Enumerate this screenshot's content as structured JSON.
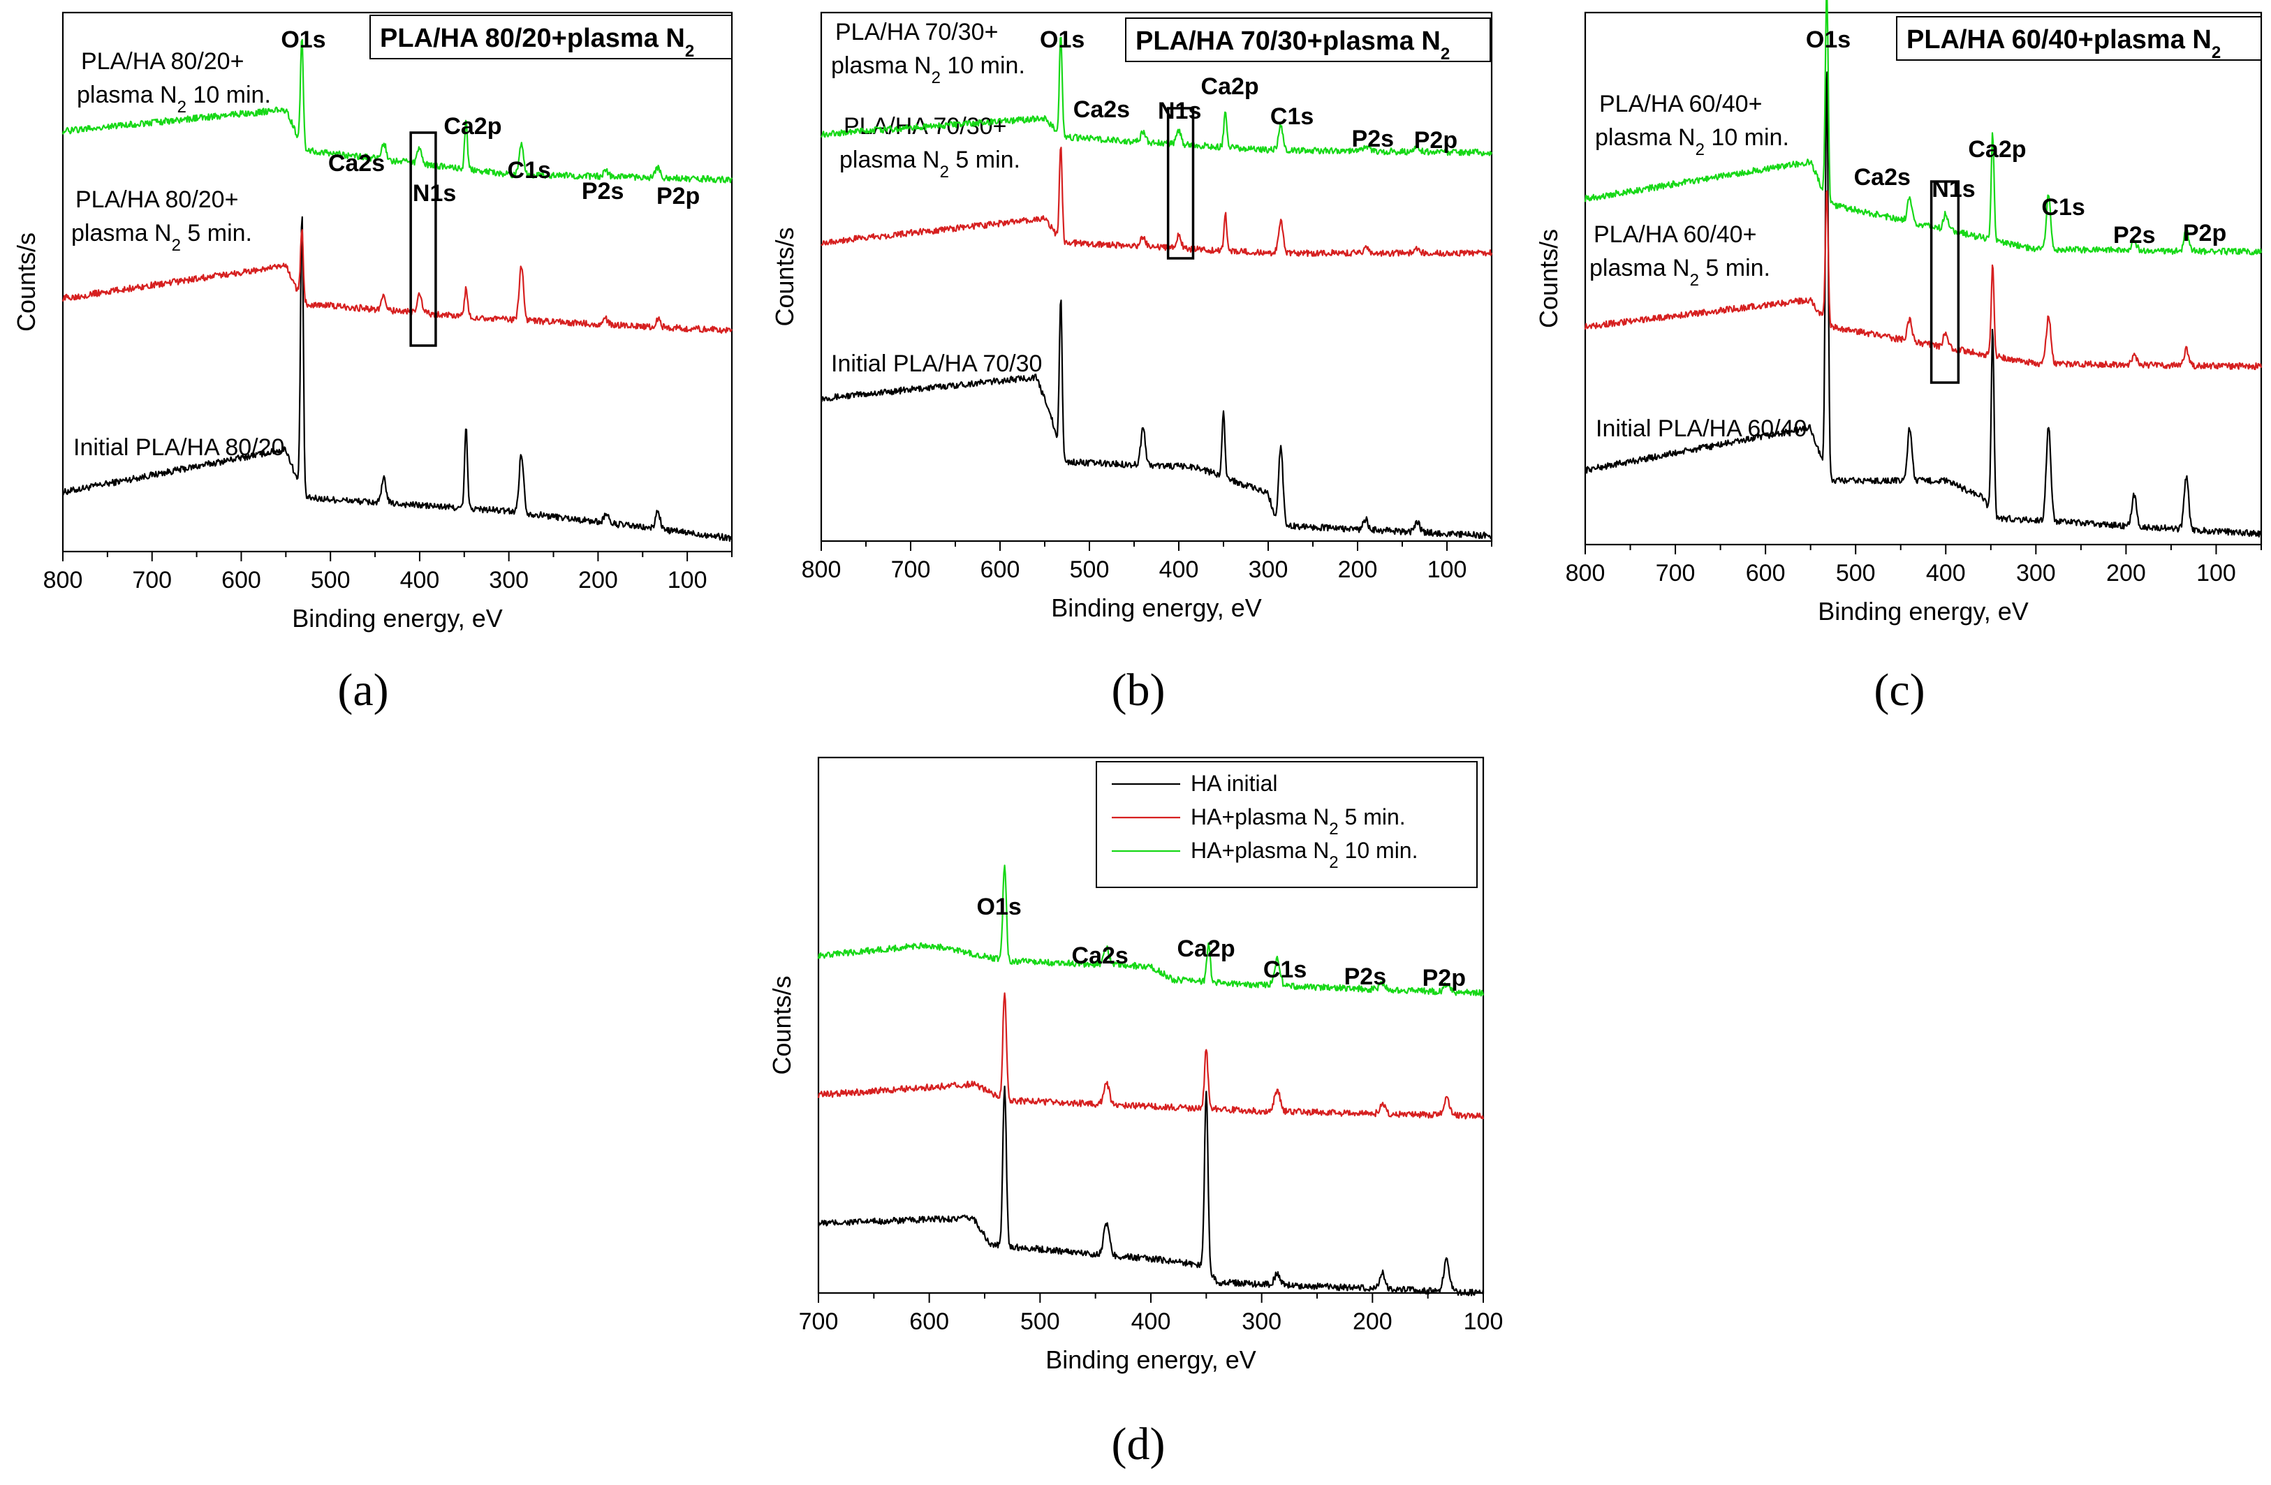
{
  "colors": {
    "initial": "#000000",
    "plasma_5": "#d62020",
    "plasma_10": "#17d817"
  },
  "chart_data": [
    {
      "type": "line",
      "panel_label": "(a)",
      "title": "PLA/HA 80/20+plasma N",
      "title_subscript": "2",
      "xlabel": "Binding energy, eV",
      "ylabel": "Counts/s",
      "xlim": [
        800,
        50
      ],
      "x_ticks": [
        800,
        700,
        600,
        500,
        400,
        300,
        200,
        100
      ],
      "peaks": [
        {
          "label": "O1s",
          "x": 532
        },
        {
          "label": "Ca2s",
          "x": 440
        },
        {
          "label": "N1s",
          "x": 400
        },
        {
          "label": "Ca2p",
          "x": 348
        },
        {
          "label": "C1s",
          "x": 286
        },
        {
          "label": "P2s",
          "x": 191
        },
        {
          "label": "P2p",
          "x": 133
        }
      ],
      "n1s_box": [
        410,
        382
      ],
      "series": [
        {
          "name": "Initial PLA/HA 80/20",
          "label_lines": [
            "Initial PLA/HA 80/20"
          ],
          "color_key": "initial",
          "baseline": [
            [
              800,
              0.11
            ],
            [
              550,
              0.19
            ],
            [
              530,
              0.1
            ],
            [
              300,
              0.075
            ],
            [
              50,
              0.025
            ]
          ],
          "peaks": [
            {
              "x": 532,
              "h": 0.52
            },
            {
              "x": 440,
              "h": 0.045
            },
            {
              "x": 348,
              "h": 0.15
            },
            {
              "x": 286,
              "h": 0.11
            },
            {
              "x": 191,
              "h": 0.018
            },
            {
              "x": 133,
              "h": 0.035
            }
          ]
        },
        {
          "name": "PLA/HA 80/20+ plasma N2 5 min.",
          "label_lines": [
            "PLA/HA 80/20+",
            "plasma N",
            "2",
            " 5 min."
          ],
          "color_key": "plasma_5",
          "baseline": [
            [
              800,
              0.47
            ],
            [
              550,
              0.53
            ],
            [
              530,
              0.46
            ],
            [
              300,
              0.43
            ],
            [
              50,
              0.41
            ]
          ],
          "peaks": [
            {
              "x": 532,
              "h": 0.13
            },
            {
              "x": 440,
              "h": 0.025
            },
            {
              "x": 400,
              "h": 0.035
            },
            {
              "x": 348,
              "h": 0.055
            },
            {
              "x": 286,
              "h": 0.1
            },
            {
              "x": 191,
              "h": 0.01
            },
            {
              "x": 133,
              "h": 0.015
            }
          ]
        },
        {
          "name": "PLA/HA 80/20+ plasma N2 10 min.",
          "label_lines": [
            "PLA/HA 80/20+",
            "plasma N",
            "2",
            " 10 min."
          ],
          "color_key": "plasma_10",
          "baseline": [
            [
              800,
              0.78
            ],
            [
              550,
              0.82
            ],
            [
              530,
              0.745
            ],
            [
              300,
              0.7
            ],
            [
              50,
              0.69
            ]
          ],
          "peaks": [
            {
              "x": 532,
              "h": 0.2
            },
            {
              "x": 440,
              "h": 0.03
            },
            {
              "x": 400,
              "h": 0.03
            },
            {
              "x": 348,
              "h": 0.09
            },
            {
              "x": 286,
              "h": 0.06
            },
            {
              "x": 191,
              "h": 0.012
            },
            {
              "x": 133,
              "h": 0.02
            }
          ]
        }
      ]
    },
    {
      "type": "line",
      "panel_label": "(b)",
      "title": "PLA/HA 70/30+plasma N",
      "title_subscript": "2",
      "xlabel": "Binding energy, eV",
      "ylabel": "Counts/s",
      "xlim": [
        800,
        50
      ],
      "x_ticks": [
        800,
        700,
        600,
        500,
        400,
        300,
        200,
        100
      ],
      "peaks": [
        {
          "label": "O1s",
          "x": 532
        },
        {
          "label": "Ca2s",
          "x": 440
        },
        {
          "label": "N1s",
          "x": 400
        },
        {
          "label": "Ca2p",
          "x": 348
        },
        {
          "label": "C1s",
          "x": 286
        },
        {
          "label": "P2s",
          "x": 191
        },
        {
          "label": "P2p",
          "x": 133
        }
      ],
      "n1s_box": [
        412,
        384
      ],
      "series": [
        {
          "name": "Initial PLA/HA 70/30",
          "label_lines": [
            "Initial PLA/HA 70/30"
          ],
          "color_key": "initial",
          "baseline": [
            [
              800,
              0.27
            ],
            [
              560,
              0.31
            ],
            [
              545,
              0.25
            ],
            [
              530,
              0.15
            ],
            [
              380,
              0.14
            ],
            [
              300,
              0.09
            ],
            [
              290,
              0.03
            ],
            [
              50,
              0.01
            ]
          ],
          "peaks": [
            {
              "x": 532,
              "h": 0.3
            },
            {
              "x": 440,
              "h": 0.07
            },
            {
              "x": 350,
              "h": 0.13
            },
            {
              "x": 286,
              "h": 0.15
            },
            {
              "x": 191,
              "h": 0.02
            },
            {
              "x": 133,
              "h": 0.02
            }
          ]
        },
        {
          "name": "PLA/HA 70/30+ plasma N2 5 min.",
          "label_lines": [
            "PLA/HA 70/30+",
            "plasma N",
            "2",
            " 5 min."
          ],
          "color_key": "plasma_5",
          "baseline": [
            [
              800,
              0.565
            ],
            [
              550,
              0.61
            ],
            [
              530,
              0.565
            ],
            [
              300,
              0.545
            ],
            [
              50,
              0.545
            ]
          ],
          "peaks": [
            {
              "x": 532,
              "h": 0.18
            },
            {
              "x": 440,
              "h": 0.02
            },
            {
              "x": 400,
              "h": 0.025
            },
            {
              "x": 348,
              "h": 0.07
            },
            {
              "x": 286,
              "h": 0.06
            },
            {
              "x": 191,
              "h": 0.01
            },
            {
              "x": 133,
              "h": 0.01
            }
          ]
        },
        {
          "name": "PLA/HA 70/30+ plasma N2 10 min.",
          "label_lines": [
            "PLA/HA 70/30+",
            "plasma N",
            "2",
            " 10 min."
          ],
          "color_key": "plasma_10",
          "baseline": [
            [
              800,
              0.77
            ],
            [
              550,
              0.8
            ],
            [
              530,
              0.765
            ],
            [
              300,
              0.74
            ],
            [
              50,
              0.735
            ]
          ],
          "peaks": [
            {
              "x": 532,
              "h": 0.19
            },
            {
              "x": 440,
              "h": 0.02
            },
            {
              "x": 400,
              "h": 0.025
            },
            {
              "x": 348,
              "h": 0.07
            },
            {
              "x": 286,
              "h": 0.05
            },
            {
              "x": 191,
              "h": 0.01
            },
            {
              "x": 133,
              "h": 0.01
            }
          ]
        }
      ]
    },
    {
      "type": "line",
      "panel_label": "(c)",
      "title": "PLA/HA 60/40+plasma N",
      "title_subscript": "2",
      "xlabel": "Binding energy, eV",
      "ylabel": "Counts/s",
      "xlim": [
        800,
        50
      ],
      "x_ticks": [
        800,
        700,
        600,
        500,
        400,
        300,
        200,
        100
      ],
      "peaks": [
        {
          "label": "O1s",
          "x": 532
        },
        {
          "label": "Ca2s",
          "x": 440
        },
        {
          "label": "N1s",
          "x": 400
        },
        {
          "label": "Ca2p",
          "x": 348
        },
        {
          "label": "C1s",
          "x": 286
        },
        {
          "label": "P2s",
          "x": 191
        },
        {
          "label": "P2p",
          "x": 133
        }
      ],
      "n1s_box": [
        416,
        386
      ],
      "series": [
        {
          "name": "Initial PLA/HA 60/40",
          "label_lines": [
            "Initial PLA/HA 60/40"
          ],
          "color_key": "initial",
          "baseline": [
            [
              800,
              0.14
            ],
            [
              550,
              0.22
            ],
            [
              530,
              0.12
            ],
            [
              400,
              0.12
            ],
            [
              360,
              0.09
            ],
            [
              345,
              0.05
            ],
            [
              50,
              0.02
            ]
          ],
          "peaks": [
            {
              "x": 532,
              "h": 0.78
            },
            {
              "x": 440,
              "h": 0.1
            },
            {
              "x": 348,
              "h": 0.35
            },
            {
              "x": 286,
              "h": 0.18
            },
            {
              "x": 191,
              "h": 0.06
            },
            {
              "x": 133,
              "h": 0.1
            }
          ]
        },
        {
          "name": "PLA/HA 60/40+ plasma N2 5 min.",
          "label_lines": [
            "PLA/HA 60/40+",
            "plasma N",
            "2",
            " 5 min."
          ],
          "color_key": "plasma_5",
          "baseline": [
            [
              800,
              0.41
            ],
            [
              550,
              0.46
            ],
            [
              530,
              0.41
            ],
            [
              300,
              0.34
            ],
            [
              50,
              0.335
            ]
          ],
          "peaks": [
            {
              "x": 532,
              "h": 0.26
            },
            {
              "x": 440,
              "h": 0.04
            },
            {
              "x": 400,
              "h": 0.03
            },
            {
              "x": 348,
              "h": 0.17
            },
            {
              "x": 286,
              "h": 0.09
            },
            {
              "x": 191,
              "h": 0.02
            },
            {
              "x": 133,
              "h": 0.03
            }
          ]
        },
        {
          "name": "PLA/HA 60/40+ plasma N2 10 min.",
          "label_lines": [
            "PLA/HA 60/40+",
            "plasma N",
            "2",
            " 10 min."
          ],
          "color_key": "plasma_10",
          "baseline": [
            [
              800,
              0.65
            ],
            [
              550,
              0.72
            ],
            [
              530,
              0.64
            ],
            [
              300,
              0.555
            ],
            [
              50,
              0.55
            ]
          ],
          "peaks": [
            {
              "x": 532,
              "h": 0.4
            },
            {
              "x": 440,
              "h": 0.045
            },
            {
              "x": 400,
              "h": 0.03
            },
            {
              "x": 348,
              "h": 0.2
            },
            {
              "x": 286,
              "h": 0.1
            },
            {
              "x": 191,
              "h": 0.02
            },
            {
              "x": 133,
              "h": 0.04
            }
          ]
        }
      ]
    },
    {
      "type": "line",
      "panel_label": "(d)",
      "title": "",
      "xlabel": "Binding energy, eV",
      "ylabel": "Counts/s",
      "xlim": [
        700,
        100
      ],
      "x_ticks": [
        700,
        600,
        500,
        400,
        300,
        200,
        100
      ],
      "peaks": [
        {
          "label": "O1s",
          "x": 532
        },
        {
          "label": "Ca2s",
          "x": 440
        },
        {
          "label": "Ca2p",
          "x": 348
        },
        {
          "label": "C1s",
          "x": 286
        },
        {
          "label": "P2s",
          "x": 191
        },
        {
          "label": "P2p",
          "x": 133
        }
      ],
      "legend": [
        {
          "text": "HA initial",
          "color_key": "initial"
        },
        {
          "text": "HA+plasma N",
          "sub": "2",
          "suffix": " 5 min.",
          "color_key": "plasma_5"
        },
        {
          "text": "HA+plasma N",
          "sub": "2",
          "suffix": " 10 min.",
          "color_key": "plasma_10"
        }
      ],
      "series": [
        {
          "name": "HA initial",
          "label_lines": [],
          "color_key": "initial",
          "baseline": [
            [
              700,
              0.13
            ],
            [
              560,
              0.14
            ],
            [
              545,
              0.09
            ],
            [
              380,
              0.06
            ],
            [
              350,
              0.05
            ],
            [
              340,
              0.02
            ],
            [
              100,
              0.0
            ]
          ],
          "peaks": [
            {
              "x": 532,
              "h": 0.3
            },
            {
              "x": 440,
              "h": 0.06
            },
            {
              "x": 350,
              "h": 0.33
            },
            {
              "x": 286,
              "h": 0.02
            },
            {
              "x": 191,
              "h": 0.03
            },
            {
              "x": 133,
              "h": 0.06
            }
          ]
        },
        {
          "name": "HA+plasma N2 5 min.",
          "label_lines": [],
          "color_key": "plasma_5",
          "baseline": [
            [
              700,
              0.37
            ],
            [
              560,
              0.39
            ],
            [
              530,
              0.36
            ],
            [
              300,
              0.34
            ],
            [
              100,
              0.33
            ]
          ],
          "peaks": [
            {
              "x": 532,
              "h": 0.2
            },
            {
              "x": 440,
              "h": 0.04
            },
            {
              "x": 350,
              "h": 0.11
            },
            {
              "x": 286,
              "h": 0.04
            },
            {
              "x": 191,
              "h": 0.02
            },
            {
              "x": 133,
              "h": 0.03
            }
          ]
        },
        {
          "name": "HA+plasma N2 10 min.",
          "label_lines": [],
          "color_key": "plasma_10",
          "baseline": [
            [
              700,
              0.63
            ],
            [
              600,
              0.65
            ],
            [
              530,
              0.62
            ],
            [
              400,
              0.61
            ],
            [
              380,
              0.585
            ],
            [
              300,
              0.575
            ],
            [
              100,
              0.56
            ]
          ],
          "peaks": [
            {
              "x": 532,
              "h": 0.18
            },
            {
              "x": 440,
              "h": 0.03
            },
            {
              "x": 348,
              "h": 0.07
            },
            {
              "x": 286,
              "h": 0.05
            },
            {
              "x": 191,
              "h": 0.01
            },
            {
              "x": 133,
              "h": 0.015
            }
          ]
        }
      ]
    }
  ]
}
